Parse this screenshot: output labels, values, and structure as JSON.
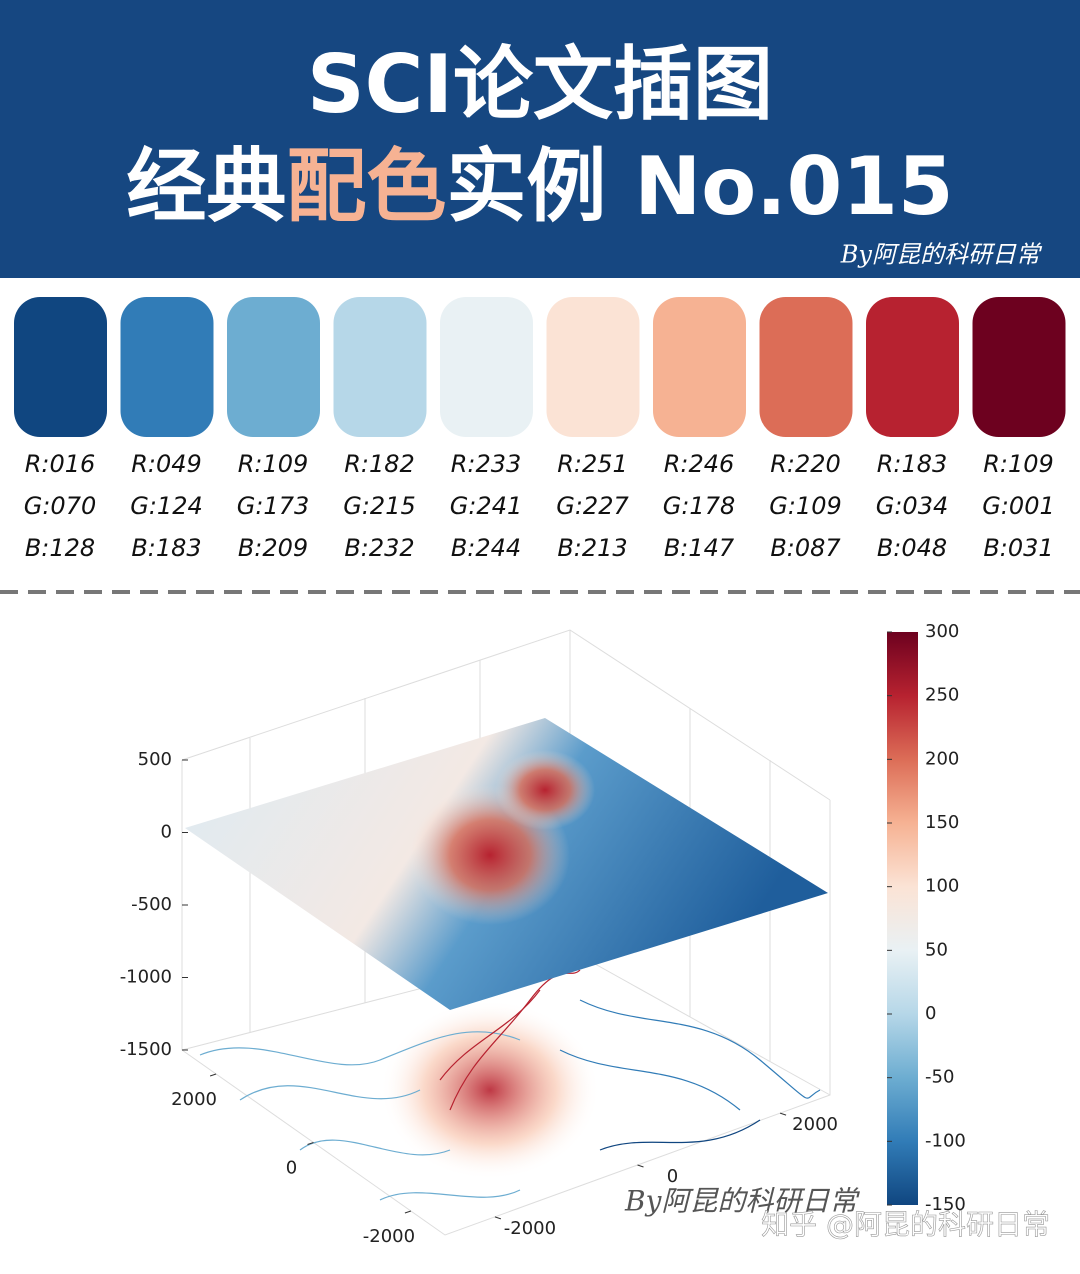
{
  "header": {
    "title_line1": "SCI论文插图",
    "title_line2_a": "经典",
    "title_line2_b": "配色",
    "title_line2_c": "实例 No.015",
    "byline": "By阿昆的科研日常"
  },
  "palette": [
    {
      "color": "#104680",
      "r": "R:016",
      "g": "G:070",
      "b": "B:128"
    },
    {
      "color": "#317CB7",
      "r": "R:049",
      "g": "G:124",
      "b": "B:183"
    },
    {
      "color": "#6DADD1",
      "r": "R:109",
      "g": "G:173",
      "b": "B:209"
    },
    {
      "color": "#B6D7E8",
      "r": "R:182",
      "g": "G:215",
      "b": "B:232"
    },
    {
      "color": "#E9F1F4",
      "r": "R:233",
      "g": "G:241",
      "b": "B:244"
    },
    {
      "color": "#FBE3D5",
      "r": "R:251",
      "g": "G:227",
      "b": "B:213"
    },
    {
      "color": "#F6B293",
      "r": "R:246",
      "g": "G:178",
      "b": "B:147"
    },
    {
      "color": "#DC6D57",
      "r": "R:220",
      "g": "G:109",
      "b": "B:087"
    },
    {
      "color": "#B72230",
      "r": "R:183",
      "g": "G:034",
      "b": "B:048"
    },
    {
      "color": "#6D011F",
      "r": "R:109",
      "g": "G:001",
      "b": "B:031"
    }
  ],
  "figure": {
    "zticks": [
      500,
      0,
      -500,
      -1000,
      -1500
    ],
    "xticks": [
      2000,
      0,
      -2000
    ],
    "yticks": [
      -2000,
      0,
      2000
    ],
    "colorbar_ticks": [
      300,
      250,
      200,
      150,
      100,
      50,
      0,
      -50,
      -100,
      -150
    ],
    "watermark": "By阿昆的科研日常",
    "footer": "知乎 @阿昆的科研日常"
  }
}
